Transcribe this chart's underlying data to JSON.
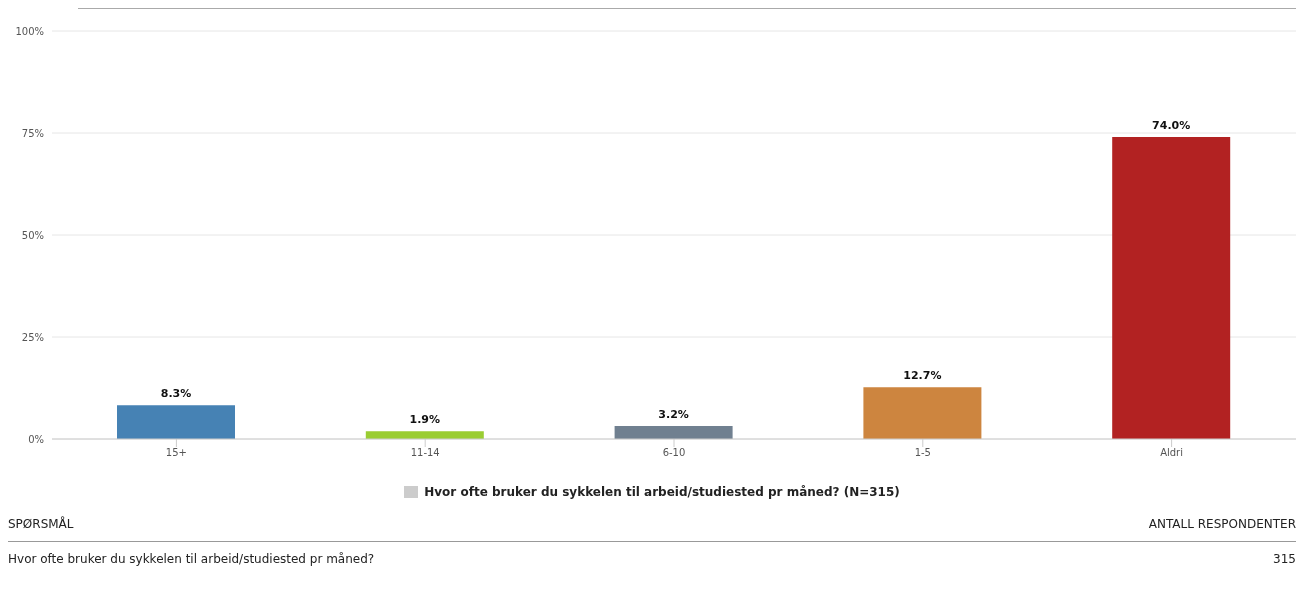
{
  "chart_data": {
    "type": "bar",
    "categories": [
      "15+",
      "11-14",
      "6-10",
      "1-5",
      "Aldri"
    ],
    "series": [
      {
        "name": "Hvor ofte bruker du sykkelen til arbeid/studiested pr måned? (N=315)",
        "color": "#cccccc",
        "colors": [
          "#4682b4",
          "#9acd32",
          "#708090",
          "#cd853f",
          "#b22222"
        ],
        "values": [
          8.3,
          1.9,
          3.2,
          12.7,
          74.0
        ],
        "value_labels": [
          "8.3%",
          "1.9%",
          "3.2%",
          "12.7%",
          "74.0%"
        ]
      }
    ],
    "ylim": [
      0,
      100
    ],
    "yticks": [
      {
        "value": 0,
        "label": "0%"
      },
      {
        "value": 25,
        "label": "25%"
      },
      {
        "value": 50,
        "label": "50%"
      },
      {
        "value": 75,
        "label": "75%"
      },
      {
        "value": 100,
        "label": "100%"
      }
    ],
    "grid": "y",
    "legend": "bottom",
    "annotations": [
      "SPØRSMÅL",
      "ANTALL RESPONDENTER",
      "Hvor ofte bruker du sykkelen til arbeid/studiested pr måned?",
      "315"
    ]
  }
}
